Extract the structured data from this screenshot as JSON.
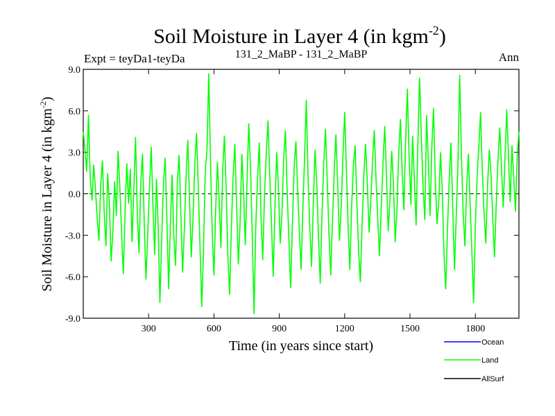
{
  "chart_data": {
    "type": "line",
    "title_main": "Soil Moisture in Layer 4 (in kgm",
    "title_sup": "-2",
    "title_close": ")",
    "subtitle_left": "Expt = teyDa1-teyDa",
    "subtitle_center": "131_2_MaBP - 131_2_MaBP",
    "subtitle_right": "Ann",
    "xlabel": "Time (in years since start)",
    "ylabel_main": "Soil Moisture in Layer 4 (in kgm",
    "ylabel_sup": "-2",
    "ylabel_close": ")",
    "xlim": [
      0,
      2000
    ],
    "ylim": [
      -9,
      9
    ],
    "xticks": [
      300,
      600,
      900,
      1200,
      1500,
      1800
    ],
    "xtick_labels": [
      "300",
      "600",
      "900",
      "1200",
      "1500",
      "1800"
    ],
    "yticks": [
      -9,
      -6,
      -3,
      0,
      3,
      6,
      9
    ],
    "ytick_labels": [
      "-9.0",
      "-6.0",
      "-3.0",
      "0.0",
      "3.0",
      "6.0",
      "9.0"
    ],
    "zero_line": 0,
    "series": [
      {
        "name": "Ocean",
        "color": "#0000ff",
        "values": []
      },
      {
        "name": "Land",
        "color": "#00ff00",
        "x_start": 0,
        "x_step": 8,
        "values": [
          4.5,
          3.2,
          1.6,
          5.7,
          1.2,
          -0.5,
          2.1,
          0.3,
          -1.8,
          -3.4,
          0.6,
          2.4,
          -1.2,
          -3.8,
          1.5,
          -0.8,
          -4.9,
          -2.7,
          0.9,
          -1.6,
          3.1,
          0.4,
          -2.9,
          -5.8,
          -1.3,
          2.2,
          -0.7,
          1.8,
          -3.5,
          0.2,
          4.1,
          -1.4,
          -4.3,
          0.8,
          2.9,
          -2.1,
          -6.2,
          -3.0,
          0.5,
          3.4,
          -0.9,
          -4.4,
          1.1,
          -2.4,
          -7.9,
          -3.3,
          0.7,
          2.6,
          -1.9,
          -6.9,
          -2.2,
          1.4,
          -3.1,
          -5.2,
          0.9,
          2.8,
          -1.5,
          -5.7,
          -2.6,
          1.2,
          3.9,
          -0.4,
          -4.6,
          -1.7,
          2.2,
          4.4,
          0.6,
          -3.8,
          -8.2,
          -4.1,
          1.5,
          3.3,
          8.7,
          2.4,
          -2.8,
          -5.9,
          -1.1,
          2.3,
          -0.5,
          -3.9,
          1.8,
          4.2,
          0.4,
          -4.5,
          -7.3,
          -2.5,
          1.3,
          3.6,
          -0.9,
          -5.1,
          -2.0,
          2.9,
          0.1,
          -3.7,
          0.9,
          5.1,
          1.7,
          -3.2,
          -8.7,
          -2.3,
          1.0,
          3.7,
          -1.6,
          -4.8,
          -0.2,
          2.9,
          5.3,
          1.4,
          -2.1,
          -6.0,
          -1.0,
          3.0,
          0.5,
          -3.6,
          -1.4,
          2.5,
          4.6,
          0.2,
          -3.3,
          -6.8,
          -2.4,
          1.9,
          3.8,
          0.4,
          -2.7,
          -5.5,
          -1.2,
          2.6,
          6.8,
          1.3,
          -2.5,
          -5.3,
          -0.8,
          3.2,
          0.7,
          -3.1,
          -6.5,
          -1.6,
          2.3,
          4.7,
          0.9,
          -2.9,
          -5.9,
          -2.0,
          1.5,
          4.3,
          0.6,
          -3.4,
          -1.0,
          2.7,
          5.9,
          1.8,
          -2.4,
          -5.5,
          -1.0,
          2.0,
          3.5,
          -0.6,
          -4.1,
          -6.4,
          -2.2,
          1.3,
          3.6,
          0.7,
          -2.8,
          -0.5,
          2.4,
          4.6,
          1.1,
          -1.8,
          -4.5,
          -0.9,
          2.2,
          4.9,
          1.3,
          -2.7,
          -0.4,
          3.1,
          0.8,
          -3.5,
          -1.1,
          2.9,
          5.4,
          1.6,
          -1.2,
          3.8,
          7.6,
          2.7,
          -0.8,
          4.2,
          1.0,
          -2.3,
          3.6,
          8.4,
          4.1,
          0.5,
          -1.9,
          5.7,
          2.3,
          -1.6,
          3.3,
          6.2,
          1.1,
          -2.2,
          -0.6,
          3.0,
          0.2,
          -4.4,
          -6.9,
          -2.6,
          1.0,
          3.7,
          -0.8,
          -5.5,
          -1.7,
          2.1,
          8.6,
          2.8,
          -1.4,
          -3.8,
          0.4,
          2.9,
          -0.9,
          -4.2,
          -7.9,
          -2.3,
          1.2,
          3.4,
          5.9,
          1.7,
          -1.4,
          -3.6,
          0.6,
          3.2,
          1.4,
          -1.8,
          -4.6,
          -0.7,
          2.5,
          4.8,
          1.9,
          -1.0,
          2.6,
          6.1,
          2.8,
          -0.6,
          3.5,
          1.2,
          -1.3,
          2.7,
          4.5
        ]
      },
      {
        "name": "AllSurf",
        "color": "#000000",
        "values": []
      }
    ],
    "legend_position": "bottom-right"
  }
}
